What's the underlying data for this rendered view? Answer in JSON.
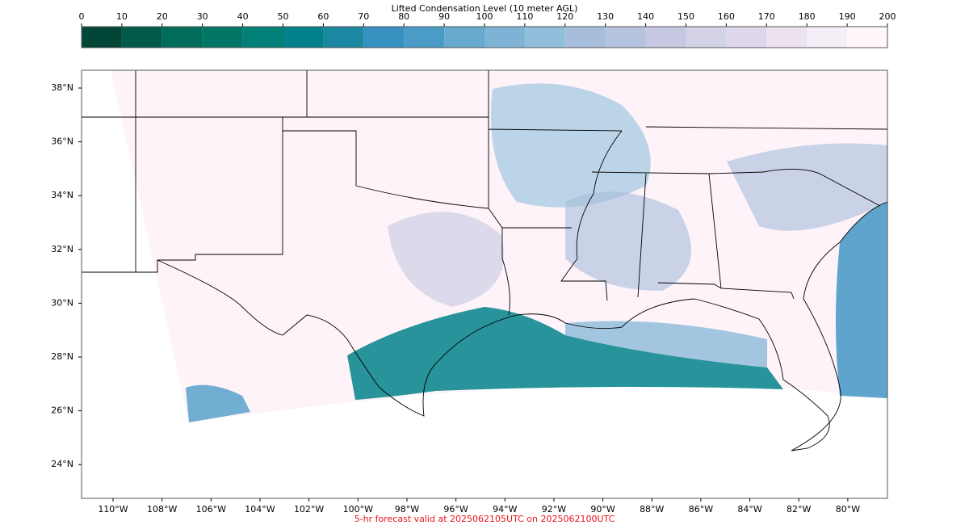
{
  "colorbar": {
    "title": "Lifted Condensation Level (10 meter AGL)",
    "ticks": [
      0,
      10,
      20,
      30,
      40,
      50,
      60,
      70,
      80,
      90,
      100,
      110,
      120,
      130,
      140,
      150,
      160,
      170,
      180,
      190,
      200
    ],
    "colors": [
      "#014636",
      "#015a4a",
      "#016c59",
      "#017566",
      "#027f77",
      "#02818a",
      "#1c87a0",
      "#3690c0",
      "#4a9bc6",
      "#67a9cf",
      "#7fb3d5",
      "#91bfdb",
      "#a6bddb",
      "#b6c3df",
      "#c6c8e1",
      "#d3d2e7",
      "#dfd8ec",
      "#ece2f0",
      "#f4eef6",
      "#fff7fb"
    ]
  },
  "map": {
    "lat_ticks": [
      {
        "value": 38,
        "label": "38°N"
      },
      {
        "value": 36,
        "label": "36°N"
      },
      {
        "value": 34,
        "label": "34°N"
      },
      {
        "value": 32,
        "label": "32°N"
      },
      {
        "value": 30,
        "label": "30°N"
      },
      {
        "value": 28,
        "label": "28°N"
      },
      {
        "value": 26,
        "label": "26°N"
      },
      {
        "value": 24,
        "label": "24°N"
      }
    ],
    "lon_ticks": [
      {
        "value": -110,
        "label": "110°W"
      },
      {
        "value": -108,
        "label": "108°W"
      },
      {
        "value": -106,
        "label": "106°W"
      },
      {
        "value": -104,
        "label": "104°W"
      },
      {
        "value": -102,
        "label": "102°W"
      },
      {
        "value": -100,
        "label": "100°W"
      },
      {
        "value": -98,
        "label": "98°W"
      },
      {
        "value": -96,
        "label": "96°W"
      },
      {
        "value": -94,
        "label": "94°W"
      },
      {
        "value": -92,
        "label": "92°W"
      },
      {
        "value": -90,
        "label": "90°W"
      },
      {
        "value": -88,
        "label": "88°W"
      },
      {
        "value": -86,
        "label": "86°W"
      },
      {
        "value": -84,
        "label": "84°W"
      },
      {
        "value": -82,
        "label": "82°W"
      },
      {
        "value": -80,
        "label": "80°W"
      }
    ]
  },
  "footer": "5-hr forecast valid at 2025062105UTC on 2025062100UTC"
}
